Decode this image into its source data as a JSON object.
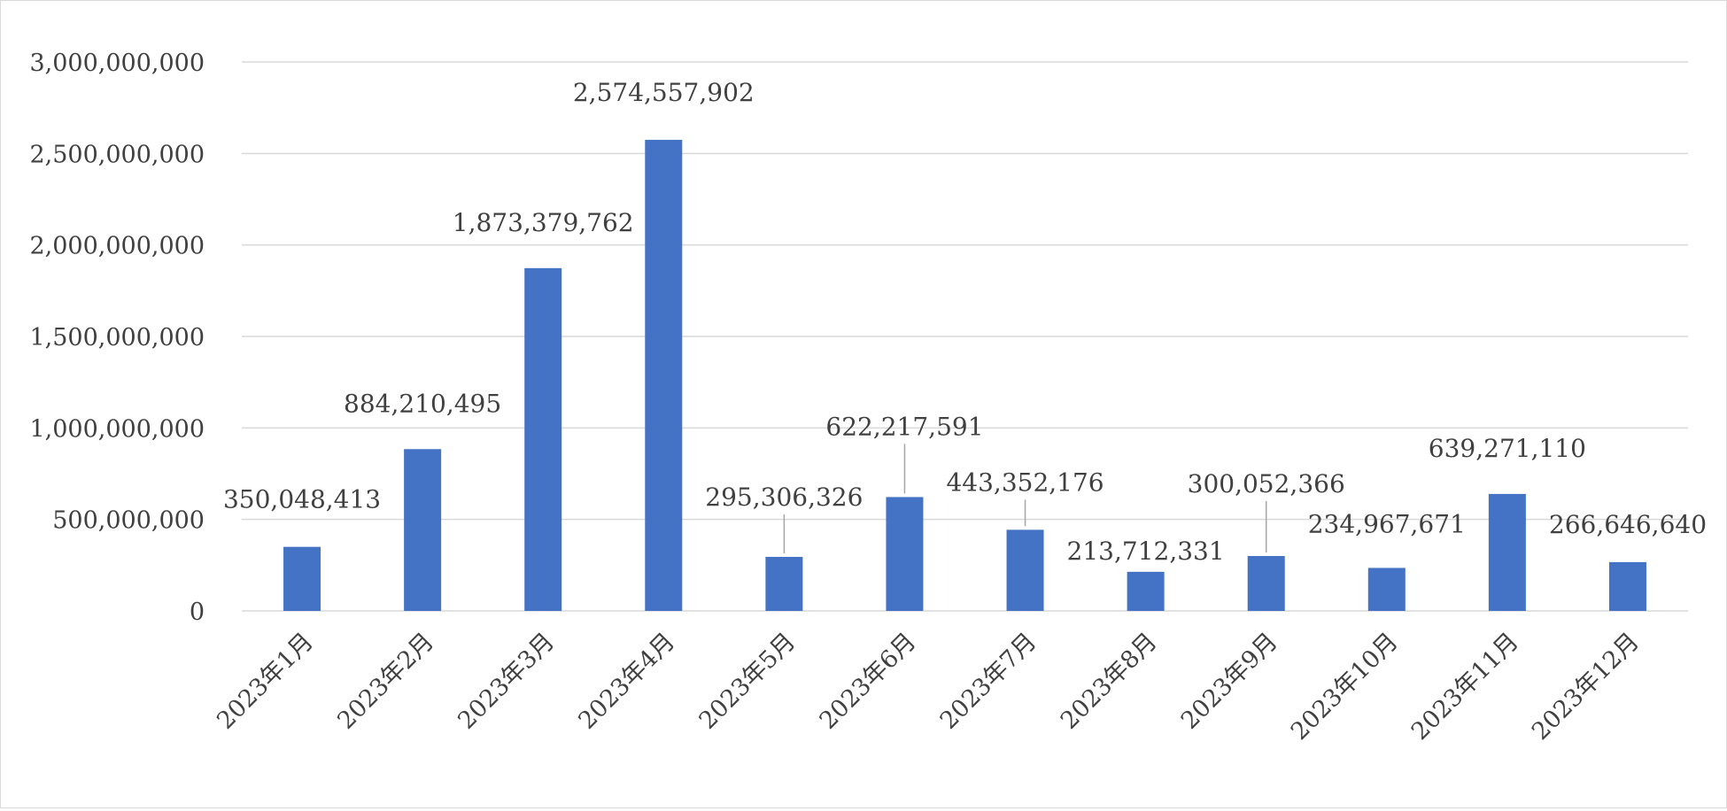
{
  "chart_data": {
    "type": "bar",
    "title": "",
    "xlabel": "",
    "ylabel": "",
    "ylim": [
      0,
      3000000000
    ],
    "grid": true,
    "legend": "none",
    "colors": {
      "bar": "#4472C4",
      "grid": "#d9d9d9",
      "text": "#404040",
      "leader": "#a6a6a6"
    },
    "y_ticks": [
      {
        "value": 0,
        "label": "0"
      },
      {
        "value": 500000000,
        "label": "500,000,000"
      },
      {
        "value": 1000000000,
        "label": "1,000,000,000"
      },
      {
        "value": 1500000000,
        "label": "1,500,000,000"
      },
      {
        "value": 2000000000,
        "label": "2,000,000,000"
      },
      {
        "value": 2500000000,
        "label": "2,500,000,000"
      },
      {
        "value": 3000000000,
        "label": "3,000,000,000"
      }
    ],
    "categories": [
      "2023年1月",
      "2023年2月",
      "2023年3月",
      "2023年4月",
      "2023年5月",
      "2023年6月",
      "2023年7月",
      "2023年8月",
      "2023年9月",
      "2023年10月",
      "2023年11月",
      "2023年12月"
    ],
    "values": [
      350048413,
      884210495,
      1873379762,
      2574557902,
      295306326,
      622217591,
      443352176,
      213712331,
      300052366,
      234967671,
      639271110,
      266646640
    ],
    "data_labels": [
      "350,048,413",
      "884,210,495",
      "1,873,379,762",
      "2,574,557,902",
      "295,306,326",
      "622,217,591",
      "443,352,176",
      "213,712,331",
      "300,052,366",
      "234,967,671",
      "639,271,110",
      "266,646,640"
    ],
    "leader_lines": [
      false,
      false,
      false,
      false,
      true,
      true,
      true,
      false,
      true,
      false,
      false,
      false
    ]
  }
}
